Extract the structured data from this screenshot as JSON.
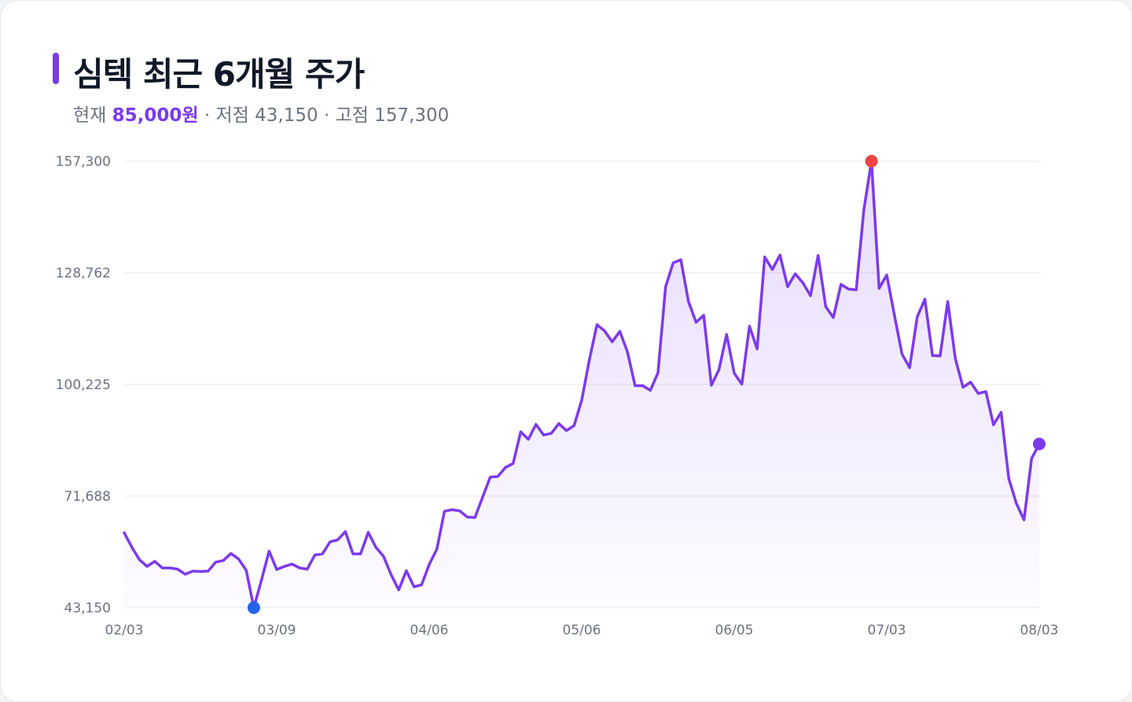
{
  "header": {
    "title": "심텍 최근 6개월 주가",
    "current_label": "현재",
    "current_value": "85,000원",
    "sep1": "·",
    "low_label": "저점",
    "low_value": "43,150",
    "sep2": "·",
    "high_label": "고점",
    "high_value": "157,300"
  },
  "colors": {
    "line": "#7c3aed",
    "area_top": "#7c3aed",
    "min_marker": "#2563eb",
    "max_marker": "#ef4444",
    "last_marker": "#7c3aed",
    "grid": "#e5e7eb"
  },
  "chart_data": {
    "type": "area",
    "title": "심텍 최근 6개월 주가",
    "xlabel": "",
    "ylabel": "",
    "ylim": [
      43150,
      157300
    ],
    "yticks": [
      43150,
      71688,
      100225,
      128762,
      157300
    ],
    "ytick_labels": [
      "43,150",
      "71,688",
      "100,225",
      "128,762",
      "157,300"
    ],
    "xtick_labels": [
      "02/03",
      "03/09",
      "04/06",
      "05/06",
      "06/05",
      "07/03",
      "08/03"
    ],
    "xtick_index": [
      0,
      20,
      40,
      60,
      80,
      100,
      120
    ],
    "grid": true,
    "markers": {
      "min_index": 17,
      "max_index": 98,
      "last_index": 120
    },
    "values": [
      62300,
      58600,
      55400,
      53700,
      55000,
      53300,
      53300,
      53000,
      51700,
      52500,
      52400,
      52500,
      54800,
      55200,
      57000,
      55600,
      52700,
      43150,
      50200,
      57600,
      52900,
      53700,
      54300,
      53300,
      53000,
      56600,
      56900,
      60000,
      60500,
      62600,
      56900,
      56900,
      62400,
      58600,
      56300,
      51600,
      47700,
      52600,
      48500,
      49000,
      54200,
      58100,
      67800,
      68200,
      67900,
      66300,
      66200,
      71400,
      76500,
      76700,
      79000,
      80000,
      88100,
      86200,
      90000,
      87300,
      87700,
      90200,
      88400,
      89700,
      96200,
      106500,
      115500,
      113900,
      111100,
      113800,
      108500,
      99900,
      99900,
      98700,
      103200,
      125200,
      131300,
      132100,
      121400,
      116100,
      117900,
      100000,
      104000,
      113000,
      103100,
      100300,
      115100,
      109300,
      132800,
      129600,
      133300,
      125200,
      128500,
      126200,
      122900,
      133200,
      120100,
      117300,
      125800,
      124600,
      124400,
      144900,
      157300,
      124800,
      128200,
      118000,
      108000,
      104500,
      117500,
      122000,
      107600,
      107500,
      121400,
      106800,
      99500,
      100800,
      97900,
      98400,
      89900,
      93100,
      76200,
      69800,
      65600,
      81300,
      85000
    ]
  }
}
